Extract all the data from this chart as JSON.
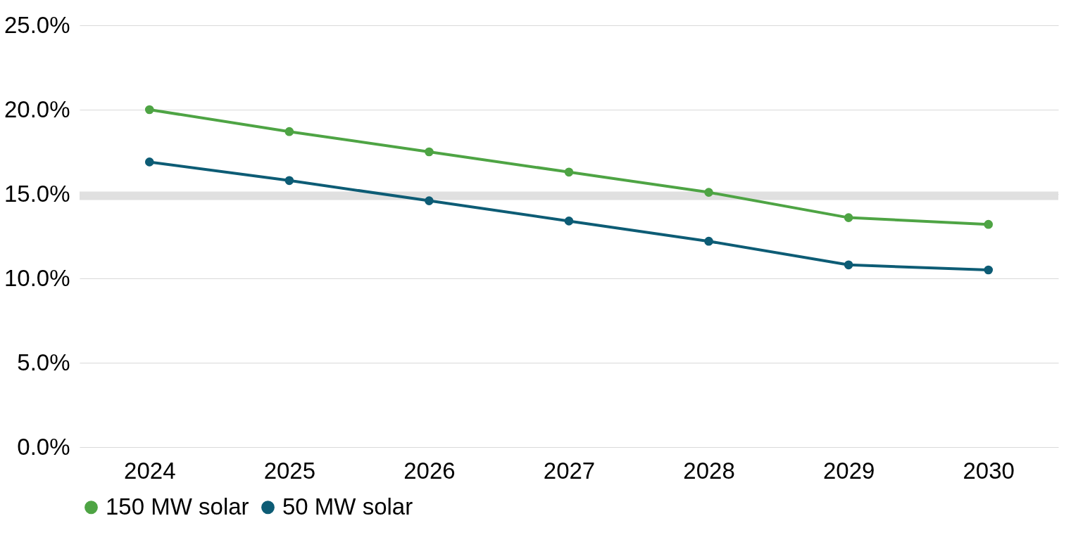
{
  "chart_data": {
    "type": "line",
    "categories": [
      "2024",
      "2025",
      "2026",
      "2027",
      "2028",
      "2029",
      "2030"
    ],
    "series": [
      {
        "name": "150 MW solar",
        "color": "#4ea444",
        "values": [
          20.0,
          18.7,
          17.5,
          16.3,
          15.1,
          13.6,
          13.2
        ]
      },
      {
        "name": "50 MW solar",
        "color": "#0d5c75",
        "values": [
          16.9,
          15.8,
          14.6,
          13.4,
          12.2,
          10.8,
          10.5
        ]
      }
    ],
    "ylim": [
      0,
      25
    ],
    "yticks": [
      {
        "value": 0,
        "label": "0.0%"
      },
      {
        "value": 5,
        "label": "5.0%"
      },
      {
        "value": 10,
        "label": "10.0%"
      },
      {
        "value": 15,
        "label": "15.0%"
      },
      {
        "value": 20,
        "label": "20.0%"
      },
      {
        "value": 25,
        "label": "25.0%"
      }
    ],
    "ref_lines": [
      {
        "axis": "y",
        "value": 14.9,
        "color": "#e0e0e0"
      }
    ],
    "grid": "y",
    "legend": "bottom",
    "marker": "circle",
    "line_style": "solid"
  }
}
